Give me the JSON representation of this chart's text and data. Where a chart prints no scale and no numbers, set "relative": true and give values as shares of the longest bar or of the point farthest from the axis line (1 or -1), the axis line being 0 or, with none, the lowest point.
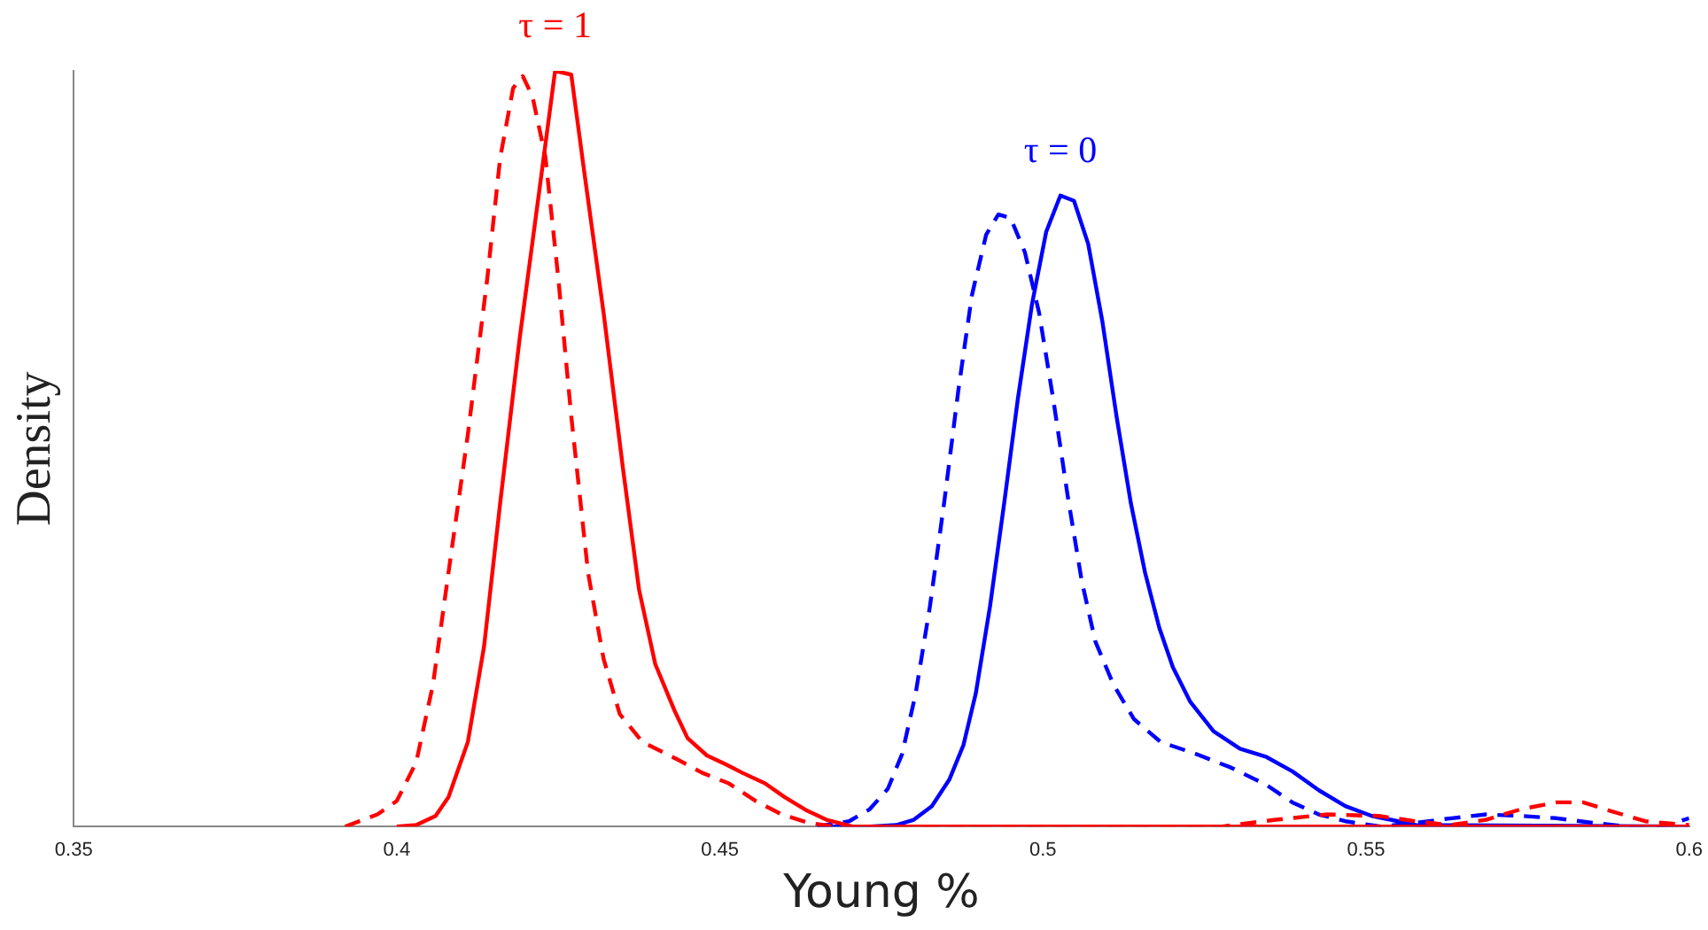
{
  "chart_data": {
    "type": "line",
    "relative": true,
    "xlabel": "Young %",
    "ylabel": "Density",
    "xlim": [
      0.35,
      0.6
    ],
    "xticks": [
      0.35,
      0.4,
      0.45,
      0.5,
      0.55,
      0.6
    ],
    "grid": false,
    "legend": false,
    "marker": "none",
    "annotations": [
      {
        "text": "τ = 1",
        "x": 0.4245,
        "y": 1.0
      },
      {
        "text": "τ = 0",
        "x": 0.5027,
        "y": 0.835
      }
    ],
    "series": [
      {
        "color": "#ff0000",
        "line_style": "solid",
        "x": [
          0.4,
          0.403,
          0.406,
          0.408,
          0.411,
          0.4135,
          0.416,
          0.419,
          0.422,
          0.4245,
          0.427,
          0.429,
          0.432,
          0.435,
          0.4375,
          0.44,
          0.443,
          0.445,
          0.448,
          0.451,
          0.4535,
          0.457,
          0.46,
          0.4635,
          0.4665,
          0.4705,
          0.6
        ],
        "values": [
          0,
          0.002,
          0.014,
          0.039,
          0.112,
          0.238,
          0.428,
          0.645,
          0.838,
          1.0,
          0.995,
          0.867,
          0.68,
          0.474,
          0.313,
          0.215,
          0.153,
          0.117,
          0.094,
          0.082,
          0.071,
          0.057,
          0.039,
          0.021,
          0.009,
          0,
          0
        ]
      },
      {
        "color": "#ff0000",
        "line_style": "dashed",
        "x": [
          0.392,
          0.397,
          0.4,
          0.403,
          0.4056,
          0.408,
          0.411,
          0.414,
          0.416,
          0.418,
          0.4195,
          0.421,
          0.423,
          0.425,
          0.427,
          0.4296,
          0.432,
          0.4345,
          0.438,
          0.4427,
          0.4473,
          0.4514,
          0.4555,
          0.4596,
          0.4637,
          0.4678,
          0.5277,
          0.536,
          0.544,
          0.552,
          0.5577,
          0.563,
          0.5686,
          0.574,
          0.5795,
          0.5836,
          0.5877,
          0.5932,
          0.6
        ],
        "values": [
          0,
          0.016,
          0.034,
          0.085,
          0.188,
          0.336,
          0.519,
          0.725,
          0.885,
          0.977,
          0.993,
          0.966,
          0.886,
          0.725,
          0.543,
          0.336,
          0.222,
          0.149,
          0.112,
          0.092,
          0.071,
          0.057,
          0.034,
          0.016,
          0.005,
          0,
          0,
          0.009,
          0.016,
          0.014,
          0.007,
          0.002,
          0.009,
          0.023,
          0.032,
          0.032,
          0.021,
          0.007,
          0.002
        ]
      },
      {
        "color": "#0000ff",
        "line_style": "solid",
        "x": [
          0.465,
          0.4732,
          0.4773,
          0.48,
          0.4828,
          0.4855,
          0.4877,
          0.4896,
          0.4918,
          0.494,
          0.4961,
          0.4983,
          0.5005,
          0.5027,
          0.5048,
          0.507,
          0.5092,
          0.5114,
          0.5136,
          0.5158,
          0.518,
          0.5201,
          0.5228,
          0.5264,
          0.5305,
          0.5346,
          0.5386,
          0.5427,
          0.5468,
          0.5509,
          0.555,
          0.5577,
          0.6
        ],
        "values": [
          0,
          0,
          0.002,
          0.009,
          0.027,
          0.062,
          0.108,
          0.176,
          0.291,
          0.428,
          0.565,
          0.691,
          0.787,
          0.835,
          0.828,
          0.771,
          0.668,
          0.542,
          0.428,
          0.336,
          0.263,
          0.211,
          0.165,
          0.126,
          0.103,
          0.092,
          0.073,
          0.048,
          0.027,
          0.014,
          0.007,
          0.002,
          0
        ]
      },
      {
        "color": "#0000ff",
        "line_style": "dashed",
        "x": [
          0.465,
          0.47,
          0.4732,
          0.476,
          0.4782,
          0.4803,
          0.4825,
          0.4847,
          0.4869,
          0.489,
          0.4912,
          0.4931,
          0.495,
          0.4972,
          0.4994,
          0.5016,
          0.5038,
          0.506,
          0.5081,
          0.5109,
          0.5141,
          0.5182,
          0.5237,
          0.5291,
          0.5346,
          0.5386,
          0.5427,
          0.5468,
          0.5523,
          0.5577,
          0.5632,
          0.5686,
          0.5741,
          0.5795,
          0.585,
          0.5905,
          0.5959,
          0.6
        ],
        "values": [
          0,
          0.007,
          0.023,
          0.05,
          0.096,
          0.176,
          0.291,
          0.428,
          0.577,
          0.703,
          0.783,
          0.81,
          0.805,
          0.76,
          0.68,
          0.565,
          0.439,
          0.325,
          0.245,
          0.188,
          0.142,
          0.112,
          0.096,
          0.078,
          0.055,
          0.032,
          0.016,
          0.007,
          0,
          0.005,
          0.011,
          0.016,
          0.014,
          0.011,
          0.005,
          0,
          0,
          0.011
        ]
      }
    ]
  }
}
